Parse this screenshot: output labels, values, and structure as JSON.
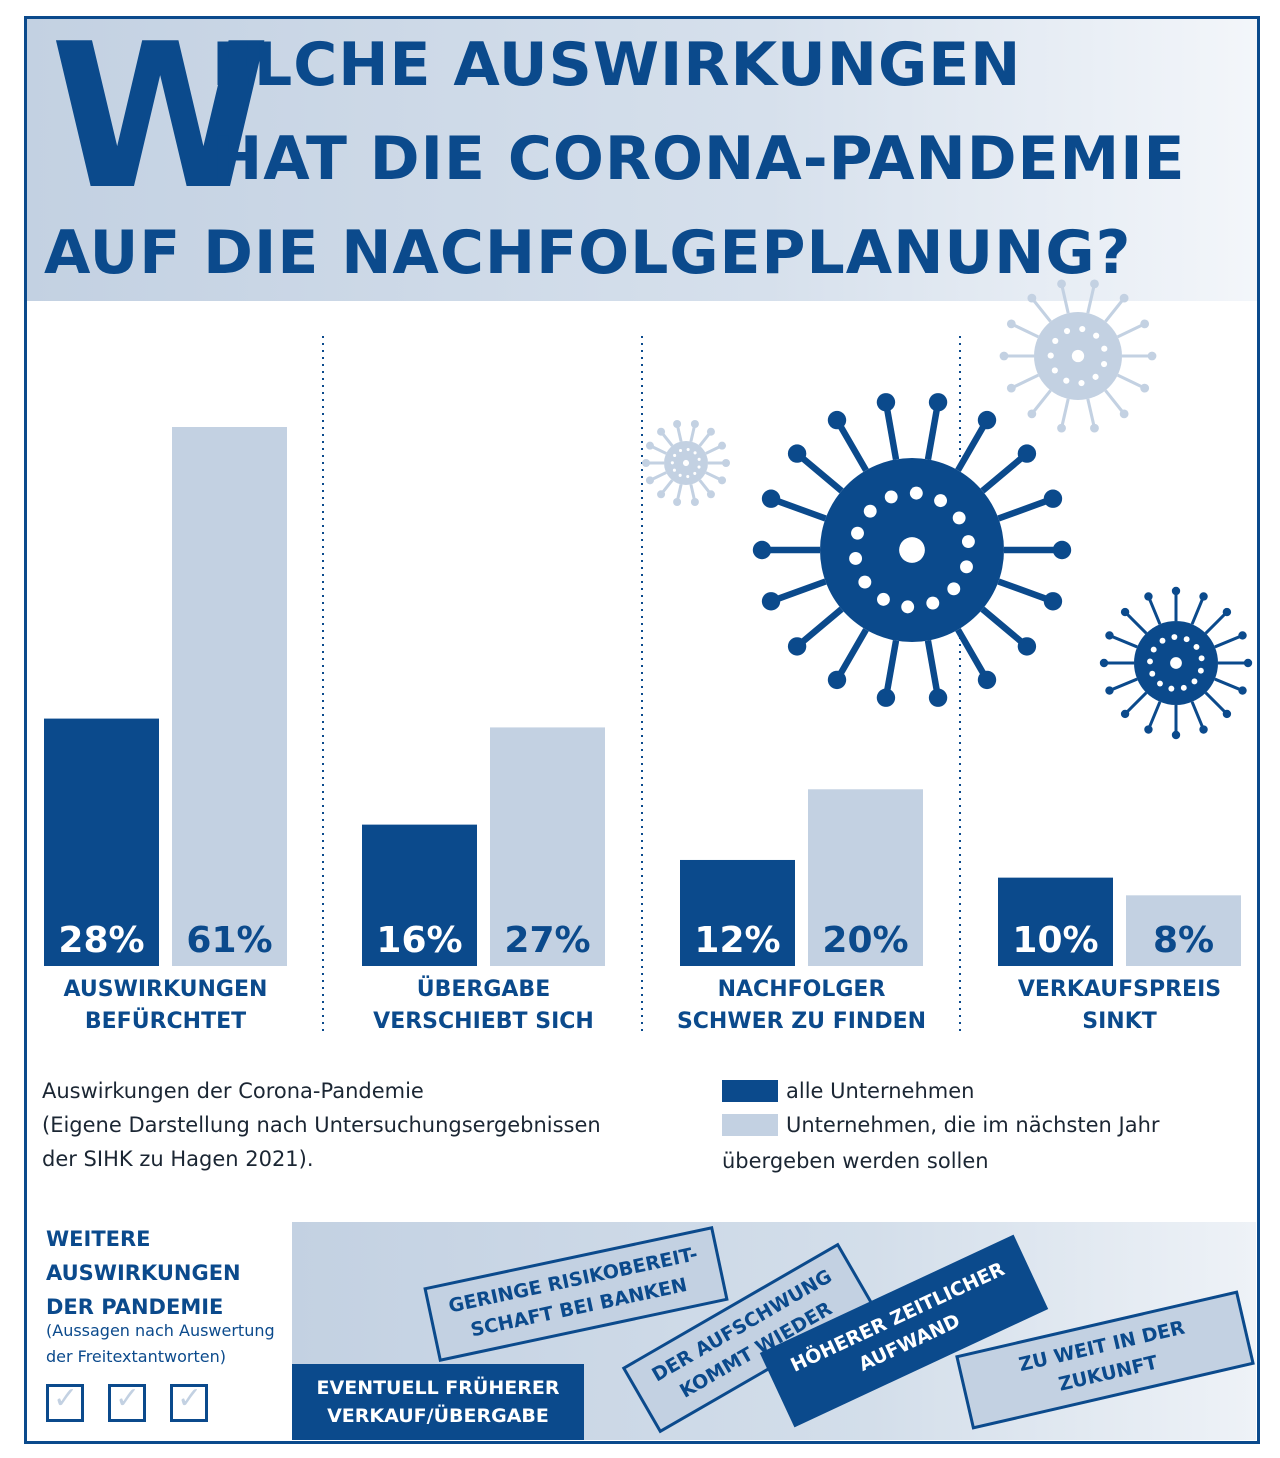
{
  "title": {
    "initial": "W",
    "line1": "ELCHE AUSWIRKUNGEN",
    "line2": "HAT DIE CORONA-PANDEMIE",
    "line3": "AUF DIE NACHFOLGEPLANUNG?"
  },
  "colors": {
    "primary": "#0b4a8c",
    "secondary": "#c3d1e2"
  },
  "chart_data": {
    "type": "bar",
    "categories": [
      "AUSWIRKUNGEN\nBEFÜRCHTET",
      "ÜBERGABE\nVERSCHIEBT SICH",
      "NACHFOLGER\nSCHWER ZU FINDEN",
      "VERKAUFSPREIS\nSINKT"
    ],
    "category_lines": [
      [
        "AUSWIRKUNGEN",
        "BEFÜRCHTET"
      ],
      [
        "ÜBERGABE",
        "VERSCHIEBT SICH"
      ],
      [
        "NACHFOLGER",
        "SCHWER ZU FINDEN"
      ],
      [
        "VERKAUFSPREIS",
        "SINKT"
      ]
    ],
    "series": [
      {
        "name": "alle Unternehmen",
        "values": [
          28,
          16,
          12,
          10
        ],
        "color": "#0b4a8c"
      },
      {
        "name": "Unternehmen, die im nächsten Jahr übergeben werden sollen",
        "values": [
          61,
          27,
          20,
          8
        ],
        "color": "#c3d1e2"
      }
    ],
    "value_suffix": "%",
    "ylim": [
      0,
      61
    ],
    "grid": false,
    "legend": "bottom-right"
  },
  "source": {
    "line1": "Auswirkungen der Corona-Pandemie",
    "line2": "(Eigene Darstellung nach Untersuchungsergebnissen",
    "line3": "der SIHK zu Hagen 2021)."
  },
  "legend": {
    "item1": "alle Unternehmen",
    "item2_line1": "Unternehmen, die im nächsten Jahr",
    "item2_line2": "übergeben werden sollen"
  },
  "side": {
    "title_line1": "WEITERE",
    "title_line2": "AUSWIRKUNGEN",
    "title_line3": "DER PANDEMIE",
    "note_line1": "(Aussagen nach Auswertung",
    "note_line2": "der Freitextantworten)"
  },
  "tags": {
    "t1_line1": "EVENTUELL FRÜHERER",
    "t1_line2": "VERKAUF/ÜBERGABE",
    "t2_line1": "GERINGE RISIKOBEREIT-",
    "t2_line2": "SCHAFT BEI BANKEN",
    "t3_line1": "DER AUFSCHWUNG",
    "t3_line2": "KOMMT WIEDER",
    "t4_line1": "HÖHERER ZEITLICHER",
    "t4_line2": "AUFWAND",
    "t5_line1": "ZU WEIT IN DER",
    "t5_line2": "ZUKUNFT"
  }
}
